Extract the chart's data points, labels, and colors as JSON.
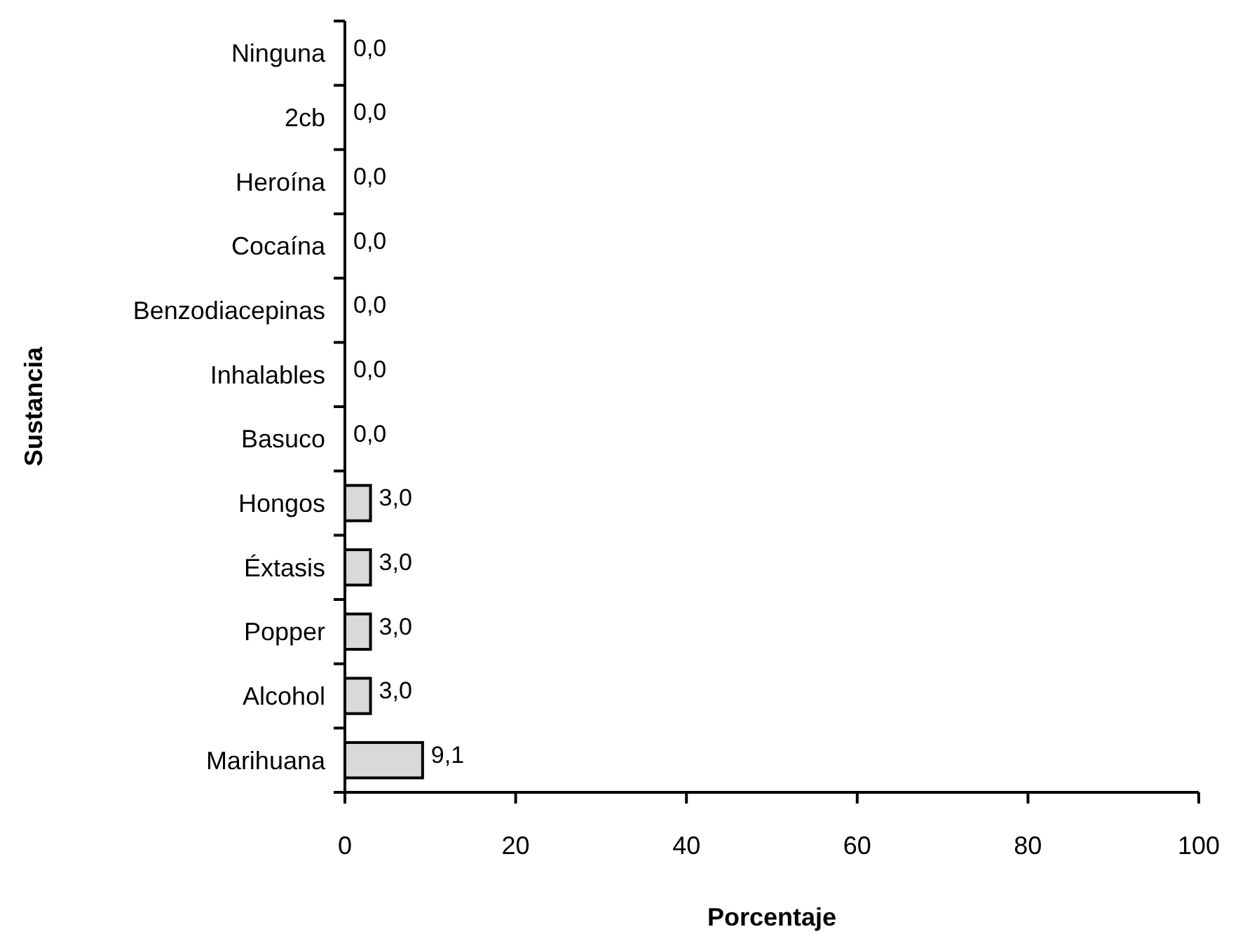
{
  "chart_data": {
    "type": "bar",
    "orientation": "horizontal",
    "xlabel": "Porcentaje",
    "ylabel": "Sustancia",
    "categories": [
      "Ninguna",
      "2cb",
      "Heroína",
      "Cocaína",
      "Benzodiacepinas",
      "Inhalables",
      "Basuco",
      "Hongos",
      "Éxtasis",
      "Popper",
      "Alcohol",
      "Marihuana"
    ],
    "values": [
      0,
      0,
      0,
      0,
      0,
      0,
      0,
      3,
      3,
      3,
      3,
      9.1
    ],
    "value_labels": [
      "0,0",
      "0,0",
      "0,0",
      "0,0",
      "0,0",
      "0,0",
      "0,0",
      "3,0",
      "3,0",
      "3,0",
      "3,0",
      "9,1"
    ],
    "color": "#d9d9d9",
    "xlim": [
      0,
      100
    ],
    "xticks": [
      0,
      20,
      40,
      60,
      80,
      100
    ],
    "grid": false
  }
}
